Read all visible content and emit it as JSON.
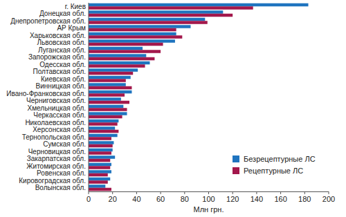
{
  "chart_data": {
    "type": "bar",
    "orientation": "horizontal",
    "x_label": "Млн грн.",
    "categories": [
      "г. Киев",
      "Донецкая обл.",
      "Днепропетровская обл.",
      "АР Крым",
      "Харьковская обл.",
      "Львовская обл.",
      "Луганская обл.",
      "Запорожская обл.",
      "Одесская обл.",
      "Полтавская обл.",
      "Киевская обл.",
      "Винницкая обл.",
      "Ивано-Франковская обл.",
      "Черниговская обл.",
      "Хмельницкая обл.",
      "Черкасская обл.",
      "Николаевская обл.",
      "Херсонская обл.",
      "Тернопольская обл.",
      "Сумская обл.",
      "Черновицкая обл.",
      "Закарпатская обл.",
      "Житомирская обл.",
      "Ровенская обл.",
      "Кировоградская обл.",
      "Волынская обл."
    ],
    "series": [
      {
        "name": "Безрецептурные ЛС",
        "color": "#1f74bf",
        "values": [
          183,
          112,
          97,
          85,
          73,
          72,
          45,
          48,
          51,
          41,
          35,
          31,
          36,
          27,
          29,
          32,
          25,
          22,
          24,
          21,
          20,
          22,
          19,
          19,
          18,
          14
        ]
      },
      {
        "name": "Рецептурные ЛС",
        "color": "#a3184c",
        "values": [
          137,
          120,
          99,
          73,
          78,
          62,
          60,
          55,
          47,
          37,
          31,
          36,
          30,
          34,
          32,
          28,
          24,
          25,
          19,
          20,
          19,
          18,
          18,
          16,
          16,
          19
        ]
      }
    ],
    "xlim": [
      0,
      200
    ],
    "xticks": [
      0,
      20,
      40,
      60,
      80,
      100,
      120,
      140,
      160,
      180,
      200
    ],
    "grid": false,
    "legend": "lower right"
  }
}
